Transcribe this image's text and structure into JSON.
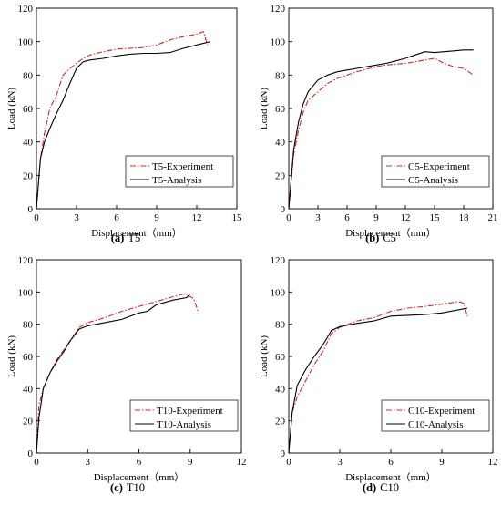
{
  "chart_data": [
    {
      "type": "line",
      "panel_id": "T5",
      "caption_letter": "(a)",
      "caption_name": "T5",
      "xlabel": "Displacement（mm）",
      "ylabel": "Load (kN)",
      "xlim": [
        0,
        15
      ],
      "ylim": [
        0,
        120
      ],
      "xticks": [
        0,
        3,
        6,
        9,
        12,
        15
      ],
      "yticks": [
        0,
        20,
        40,
        60,
        80,
        100,
        120
      ],
      "legend_position": "bottom-right",
      "series": [
        {
          "name": "T5-Experiment",
          "style": "dashdot",
          "color": "#d62728",
          "x": [
            0,
            0.3,
            0.6,
            1.0,
            1.5,
            2.0,
            2.5,
            3.0,
            3.5,
            4.0,
            5.0,
            6.0,
            7.0,
            8.0,
            9.0,
            10.0,
            11.0,
            12.0,
            12.5,
            12.8
          ],
          "y": [
            0,
            30,
            45,
            60,
            68,
            80,
            84,
            87,
            90,
            92,
            94,
            95.5,
            96,
            96.5,
            98,
            101,
            103,
            104.5,
            106,
            98
          ]
        },
        {
          "name": "T5-Analysis",
          "style": "solid",
          "color": "#000000",
          "x": [
            0,
            0.3,
            0.6,
            1.0,
            1.5,
            2.0,
            2.5,
            3.0,
            3.5,
            4.0,
            5.0,
            6.0,
            7.0,
            8.0,
            9.0,
            10.0,
            11.0,
            12.0,
            13.0
          ],
          "y": [
            0,
            30,
            40,
            48,
            57,
            65,
            75,
            84,
            88,
            89,
            90,
            91.5,
            92.5,
            93,
            93,
            93.5,
            96,
            98,
            100
          ]
        }
      ]
    },
    {
      "type": "line",
      "panel_id": "C5",
      "caption_letter": "(b)",
      "caption_name": "C5",
      "xlabel": "Displacement（mm）",
      "ylabel": "Load (kN)",
      "xlim": [
        0,
        21
      ],
      "ylim": [
        0,
        120
      ],
      "xticks": [
        0,
        3,
        6,
        9,
        12,
        15,
        18,
        21
      ],
      "yticks": [
        0,
        20,
        40,
        60,
        80,
        100,
        120
      ],
      "legend_position": "bottom-right",
      "series": [
        {
          "name": "C5-Experiment",
          "style": "dashdot",
          "color": "#d62728",
          "x": [
            0,
            0.5,
            1.0,
            1.5,
            2.0,
            3.0,
            4.0,
            5.0,
            6.0,
            7.0,
            8.0,
            9.0,
            10.0,
            11.0,
            12.0,
            13.0,
            14.0,
            15.0,
            16.0,
            17.0,
            18.0,
            19.0
          ],
          "y": [
            0,
            32,
            47,
            58,
            65,
            70,
            75,
            78,
            80,
            82,
            83.5,
            85,
            86,
            86.5,
            87,
            88,
            89,
            90,
            87,
            85,
            84,
            80
          ]
        },
        {
          "name": "C5-Analysis",
          "style": "solid",
          "color": "#000000",
          "x": [
            0,
            0.5,
            1.0,
            1.5,
            2.0,
            3.0,
            4.0,
            5.0,
            6.0,
            7.0,
            8.0,
            9.0,
            10.0,
            11.0,
            12.0,
            13.0,
            14.0,
            15.0,
            16.0,
            17.0,
            18.0,
            19.0
          ],
          "y": [
            0,
            35,
            52,
            63,
            70,
            77,
            80,
            82,
            83,
            84,
            85,
            86,
            87,
            88.5,
            90,
            92,
            94,
            93.5,
            94,
            94.5,
            95,
            95
          ]
        }
      ]
    },
    {
      "type": "line",
      "panel_id": "T10",
      "caption_letter": "(c)",
      "caption_name": "T10",
      "xlabel": "Displacement（mm）",
      "ylabel": "Load (kN)",
      "xlim": [
        0,
        12
      ],
      "ylim": [
        0,
        120
      ],
      "xticks": [
        0,
        3,
        6,
        9,
        12
      ],
      "yticks": [
        0,
        20,
        40,
        60,
        80,
        100,
        120
      ],
      "legend_position": "bottom-right",
      "series": [
        {
          "name": "T10-Experiment",
          "style": "dashdot",
          "color": "#d62728",
          "x": [
            0,
            0.15,
            0.4,
            0.8,
            1.2,
            1.6,
            2.0,
            2.5,
            3.0,
            3.5,
            4.0,
            5.0,
            6.0,
            7.0,
            8.0,
            8.7,
            9.2,
            9.5
          ],
          "y": [
            0,
            30,
            40,
            50,
            58,
            64,
            70,
            78,
            81,
            82.5,
            84,
            88,
            91,
            94,
            97,
            99,
            96,
            87
          ]
        },
        {
          "name": "T10-Analysis",
          "style": "solid",
          "color": "#000000",
          "x": [
            0,
            0.15,
            0.4,
            0.8,
            1.2,
            1.6,
            2.0,
            2.5,
            3.0,
            3.5,
            4.0,
            5.0,
            6.0,
            6.5,
            7.0,
            8.0,
            8.8,
            9.0
          ],
          "y": [
            0,
            22,
            40,
            50,
            57,
            63,
            70,
            77,
            79,
            80,
            81,
            83,
            87,
            88,
            92,
            95,
            96.5,
            99
          ]
        }
      ]
    },
    {
      "type": "line",
      "panel_id": "C10",
      "caption_letter": "(d)",
      "caption_name": "C10",
      "xlabel": "Displacement（mm）",
      "ylabel": "Load (kN)",
      "xlim": [
        0,
        12
      ],
      "ylim": [
        0,
        120
      ],
      "xticks": [
        0,
        3,
        6,
        9,
        12
      ],
      "yticks": [
        0,
        20,
        40,
        60,
        80,
        100,
        120
      ],
      "legend_position": "bottom-right",
      "series": [
        {
          "name": "C10-Experiment",
          "style": "dashdot",
          "color": "#d62728",
          "x": [
            0,
            0.2,
            0.5,
            1.0,
            1.5,
            2.0,
            2.5,
            3.0,
            3.5,
            4.0,
            5.0,
            6.0,
            7.0,
            8.0,
            9.0,
            10.0,
            10.3,
            10.5
          ],
          "y": [
            0,
            25,
            35,
            45,
            55,
            63,
            74,
            78,
            80,
            82,
            84,
            88,
            90,
            91,
            92.5,
            94,
            93,
            85
          ]
        },
        {
          "name": "C10-Analysis",
          "style": "solid",
          "color": "#000000",
          "x": [
            0,
            0.2,
            0.5,
            1.0,
            1.5,
            2.0,
            2.5,
            3.0,
            3.5,
            4.0,
            5.0,
            6.0,
            7.0,
            8.0,
            9.0,
            10.0,
            10.5
          ],
          "y": [
            0,
            25,
            42,
            52,
            60,
            67,
            76,
            78.5,
            79.5,
            80.5,
            82,
            85,
            85.5,
            86,
            87,
            89,
            90
          ]
        }
      ]
    }
  ]
}
